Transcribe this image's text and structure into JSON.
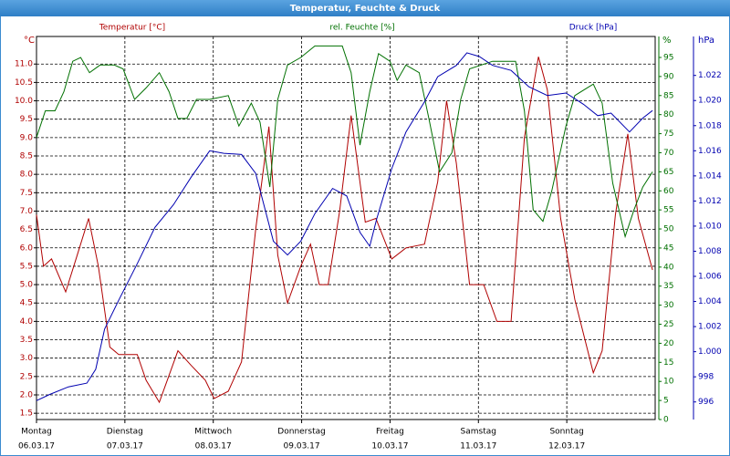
{
  "chart_data": {
    "type": "line",
    "title": "Temperatur, Feuchte & Druck",
    "xlim": [
      0,
      7
    ],
    "xticks": [
      {
        "value": 0,
        "label": "Montag",
        "date": "06.03.17"
      },
      {
        "value": 1,
        "label": "Dienstag",
        "date": "07.03.17"
      },
      {
        "value": 2,
        "label": "Mittwoch",
        "date": "08.03.17"
      },
      {
        "value": 3,
        "label": "Donnerstag",
        "date": "09.03.17"
      },
      {
        "value": 4,
        "label": "Freitag",
        "date": "10.03.17"
      },
      {
        "value": 5,
        "label": "Samstag",
        "date": "11.03.17"
      },
      {
        "value": 6,
        "label": "Sonntag",
        "date": "12.03.17"
      }
    ],
    "ylabel": "°C",
    "ylim": [
      1.33,
      11.75
    ],
    "yticks": [
      1.5,
      {
        "value": 2,
        "label": "2.0"
      },
      2.5,
      {
        "value": 3,
        "label": "3.0"
      },
      3.5,
      {
        "value": 4,
        "label": "4.0"
      },
      4.5,
      {
        "value": 5,
        "label": "5.0"
      },
      5.5,
      {
        "value": 6,
        "label": "6.0"
      },
      6.5,
      {
        "value": 7,
        "label": "7.0"
      },
      7.5,
      {
        "value": 8,
        "label": "8.0"
      },
      8.5,
      {
        "value": 9,
        "label": "9.0"
      },
      9.5,
      {
        "value": 10,
        "label": "10.0"
      },
      10.5,
      {
        "value": 11,
        "label": "11.0"
      }
    ],
    "y2label": "%",
    "y2lim": [
      0,
      100.5
    ],
    "y2ticks": [
      0,
      5,
      10,
      15,
      20,
      25,
      30,
      35,
      40,
      45,
      50,
      55,
      60,
      65,
      70,
      75,
      80,
      85,
      90,
      95
    ],
    "y3label": "hPa",
    "y3lim": [
      994.6,
      1025.1
    ],
    "y3ticks": [
      996,
      998,
      {
        "value": 1000,
        "label": "1.000"
      },
      {
        "value": 1002,
        "label": "1.002"
      },
      {
        "value": 1004,
        "label": "1.004"
      },
      {
        "value": 1006,
        "label": "1.006"
      },
      {
        "value": 1008,
        "label": "1.008"
      },
      {
        "value": 1010,
        "label": "1.010"
      },
      {
        "value": 1012,
        "label": "1.012"
      },
      {
        "value": 1014,
        "label": "1.014"
      },
      {
        "value": 1016,
        "label": "1.016"
      },
      {
        "value": 1018,
        "label": "1.018"
      },
      {
        "value": 1020,
        "label": "1.020"
      },
      {
        "value": 1022,
        "label": "1.022"
      }
    ],
    "grid": true,
    "series": [
      {
        "name": "Temperatur [°C]",
        "color": "#b00000",
        "axis": "y",
        "x": [
          0,
          0.08,
          0.17,
          0.33,
          0.46,
          0.59,
          0.7,
          0.83,
          0.93,
          1.14,
          1.24,
          1.39,
          1.6,
          1.75,
          1.91,
          2.01,
          2.17,
          2.32,
          2.48,
          2.63,
          2.73,
          2.84,
          2.99,
          3.1,
          3.2,
          3.3,
          3.43,
          3.56,
          3.72,
          3.84,
          4.02,
          4.18,
          4.39,
          4.54,
          4.64,
          4.75,
          4.9,
          5.06,
          5.21,
          5.37,
          5.52,
          5.68,
          5.78,
          5.93,
          6.09,
          6.3,
          6.4,
          6.55,
          6.69,
          6.81,
          6.97
        ],
        "values": [
          6.9,
          5.5,
          5.7,
          4.8,
          5.8,
          6.8,
          5.5,
          3.3,
          3.1,
          3.1,
          2.4,
          1.8,
          3.2,
          2.8,
          2.4,
          1.9,
          2.1,
          2.9,
          6.5,
          9.3,
          5.8,
          4.5,
          5.5,
          6.1,
          5.0,
          5.0,
          7.0,
          9.6,
          6.7,
          6.8,
          5.7,
          6.0,
          6.1,
          7.8,
          10.0,
          8.3,
          5.0,
          5.0,
          4.0,
          4.0,
          9.0,
          11.2,
          10.3,
          6.8,
          4.6,
          2.6,
          3.2,
          6.9,
          9.1,
          6.8,
          5.4
        ]
      },
      {
        "name": "rel. Feuchte [%]",
        "color": "#007000",
        "axis": "y2",
        "x": [
          0,
          0.1,
          0.21,
          0.31,
          0.41,
          0.5,
          0.6,
          0.72,
          0.88,
          0.98,
          1.11,
          1.24,
          1.39,
          1.5,
          1.6,
          1.7,
          1.81,
          1.96,
          2.17,
          2.29,
          2.43,
          2.53,
          2.64,
          2.73,
          2.84,
          2.99,
          3.15,
          3.46,
          3.56,
          3.66,
          3.77,
          3.87,
          4.0,
          4.08,
          4.18,
          4.33,
          4.44,
          4.56,
          4.7,
          4.8,
          4.9,
          5.16,
          5.42,
          5.52,
          5.62,
          5.73,
          5.83,
          5.99,
          6.09,
          6.3,
          6.4,
          6.52,
          6.66,
          6.76,
          6.86,
          6.97
        ],
        "values": [
          74,
          81,
          81,
          86,
          94,
          95,
          91,
          93,
          93,
          92,
          84,
          87,
          91,
          86,
          79,
          79,
          84,
          84,
          85,
          77,
          83,
          78,
          61,
          84,
          93,
          95,
          98,
          98,
          91,
          72,
          86,
          96,
          94,
          89,
          93,
          91,
          79,
          65,
          70,
          84,
          92,
          94,
          94,
          81,
          55,
          52,
          60,
          77,
          85,
          88,
          83,
          62,
          48,
          55,
          61,
          65
        ]
      },
      {
        "name": "Druck [hPa]",
        "color": "#0000b0",
        "axis": "y3",
        "x": [
          0,
          0.15,
          0.36,
          0.57,
          0.67,
          0.77,
          0.93,
          1.14,
          1.34,
          1.55,
          1.75,
          1.96,
          2.12,
          2.32,
          2.48,
          2.68,
          2.84,
          2.99,
          3.15,
          3.35,
          3.51,
          3.66,
          3.77,
          3.85,
          4.02,
          4.18,
          4.39,
          4.54,
          4.75,
          4.87,
          5.01,
          5.16,
          5.37,
          5.57,
          5.78,
          5.99,
          6.19,
          6.35,
          6.5,
          6.71,
          6.86,
          6.97
        ],
        "values": [
          996.1,
          996.6,
          997.2,
          997.5,
          998.6,
          1001.8,
          1004.1,
          1007.0,
          1009.9,
          1011.7,
          1013.9,
          1016.0,
          1015.8,
          1015.7,
          1014.2,
          1008.8,
          1007.7,
          1008.8,
          1011.0,
          1013.0,
          1012.4,
          1009.5,
          1008.4,
          1010.6,
          1014.6,
          1017.5,
          1019.9,
          1021.9,
          1022.8,
          1023.8,
          1023.5,
          1022.8,
          1022.4,
          1021.1,
          1020.4,
          1020.6,
          1019.7,
          1018.8,
          1019.0,
          1017.5,
          1018.6,
          1019.2
        ]
      }
    ]
  }
}
